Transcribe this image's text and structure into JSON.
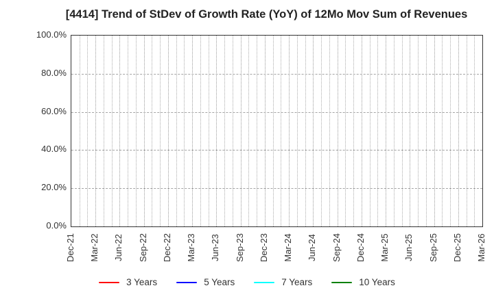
{
  "chart_data": {
    "type": "line",
    "title": "[4414]  Trend of StDev of Growth Rate (YoY) of 12Mo Mov Sum of Revenues",
    "xlabel": "",
    "ylabel": "",
    "ylim": [
      0,
      100
    ],
    "y_tick_values": [
      0,
      20,
      40,
      60,
      80,
      100
    ],
    "y_tick_labels": [
      "0.0%",
      "20.0%",
      "40.0%",
      "60.0%",
      "80.0%",
      "100.0%"
    ],
    "x_tick_labels": [
      "Dec-21",
      "Mar-22",
      "Jun-22",
      "Sep-22",
      "Dec-22",
      "Mar-23",
      "Jun-23",
      "Sep-23",
      "Dec-23",
      "Mar-24",
      "Jun-24",
      "Sep-24",
      "Dec-24",
      "Mar-25",
      "Jun-25",
      "Sep-25",
      "Dec-25",
      "Mar-26"
    ],
    "minor_x_gridlines_per_quarter": 3,
    "grid": true,
    "legend_position": "bottom",
    "series": [
      {
        "name": "3 Years",
        "color": "#ff0000",
        "values": []
      },
      {
        "name": "5 Years",
        "color": "#0000ff",
        "values": []
      },
      {
        "name": "7 Years",
        "color": "#00ffff",
        "values": []
      },
      {
        "name": "10 Years",
        "color": "#008000",
        "values": []
      }
    ],
    "note": "no series lines visible in plot area"
  },
  "styles": {
    "background": "#ffffff",
    "spine_color": "#333333",
    "grid_vertical_color": "#ababab",
    "grid_horizontal_color": "#a3a3a3",
    "tick_label_color": "#333333",
    "title_color": "#222222"
  }
}
